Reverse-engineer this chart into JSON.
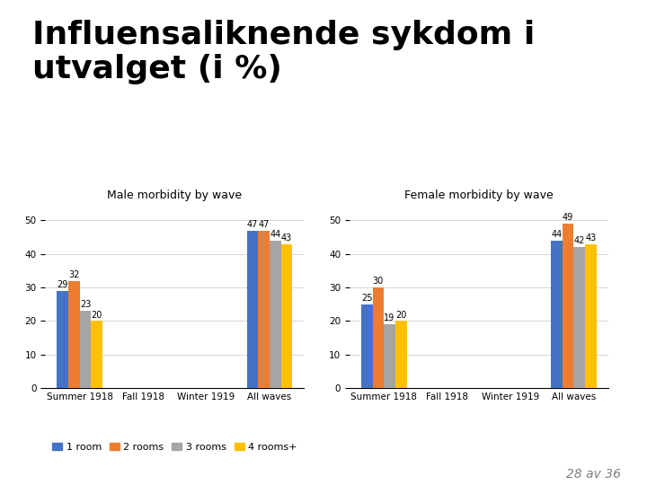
{
  "title_line1": "Influensaliknende sykdom i",
  "title_line2": "utvalget (i %)",
  "title_fontsize": 26,
  "title_fontweight": "bold",
  "subtitle_male": "Male morbidity by wave",
  "subtitle_female": "Female morbidity by wave",
  "categories": [
    "Summer 1918",
    "Fall 1918",
    "Winter 1919",
    "All waves"
  ],
  "male_data": {
    "1 room": [
      29,
      0,
      0,
      47
    ],
    "2 rooms": [
      32,
      0,
      0,
      47
    ],
    "3 rooms": [
      23,
      0,
      0,
      44
    ],
    "4 rooms+": [
      20,
      0,
      0,
      43
    ]
  },
  "female_data": {
    "1 room": [
      25,
      0,
      0,
      44
    ],
    "2 rooms": [
      30,
      0,
      0,
      49
    ],
    "3 rooms": [
      19,
      0,
      0,
      42
    ],
    "4 rooms+": [
      20,
      0,
      0,
      43
    ]
  },
  "colors": [
    "#4472C4",
    "#ED7D31",
    "#A5A5A5",
    "#FFC000"
  ],
  "legend_labels": [
    "1 room",
    "2 rooms",
    "3 rooms",
    "4 rooms+"
  ],
  "ylim": [
    0,
    55
  ],
  "yticks": [
    0,
    10,
    20,
    30,
    40,
    50
  ],
  "bar_width": 0.18,
  "subtitle_fontsize": 9,
  "label_fontsize": 7,
  "tick_fontsize": 7.5,
  "legend_fontsize": 8,
  "footer_text": "28 av 36",
  "background_color": "#FFFFFF"
}
